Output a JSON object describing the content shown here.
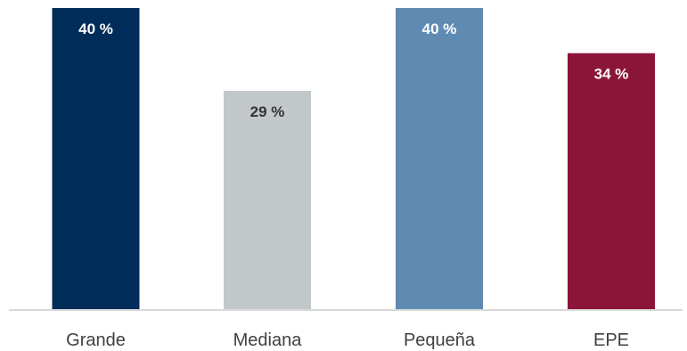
{
  "chart_data": {
    "type": "bar",
    "categories": [
      "Grande",
      "Mediana",
      "Pequeña",
      "EPE"
    ],
    "values": [
      40,
      29,
      40,
      34
    ],
    "data_labels": [
      "40 %",
      "29 %",
      "40 %",
      "34 %"
    ],
    "ylim": [
      0,
      40
    ],
    "grid": false,
    "legend": "none",
    "colors": [
      "#002d5a",
      "#c2c7c9",
      "#5f8bb3",
      "#8b1538"
    ],
    "label_colors": [
      "#ffffff",
      "#333333",
      "#ffffff",
      "#ffffff"
    ],
    "axis_color": "#d9d9d9"
  }
}
